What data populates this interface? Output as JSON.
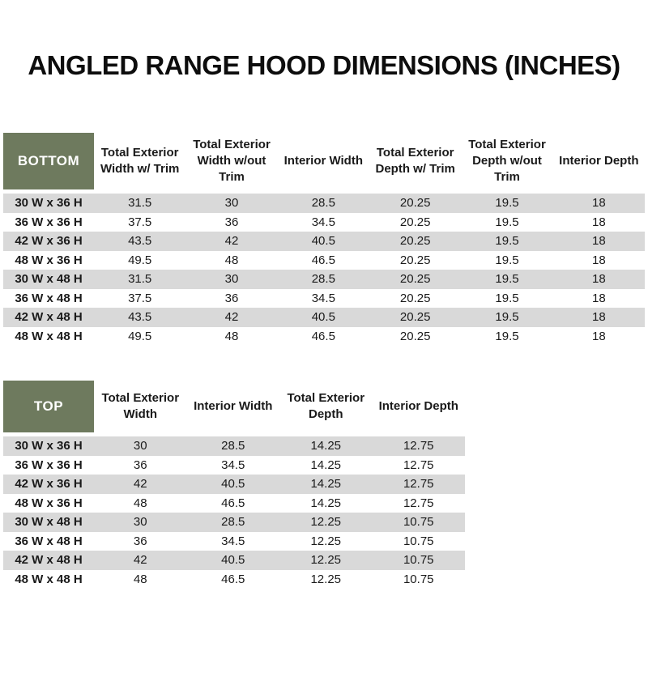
{
  "title": "ANGLED RANGE HOOD DIMENSIONS (INCHES)",
  "colors": {
    "header_green": "#6E7A5E",
    "row_stripe": "#D9D9D9",
    "header_text": "#FFFFFF",
    "body_text": "#1A1A1A"
  },
  "bottom_table": {
    "corner_label": "BOTTOM",
    "columns": [
      "Total Exterior Width w/ Trim",
      "Total Exterior Width w/out Trim",
      "Interior Width",
      "Total Exterior Depth w/ Trim",
      "Total Exterior Depth w/out Trim",
      "Interior Depth"
    ],
    "rows": [
      {
        "label": "30 W x 36 H",
        "values": [
          "31.5",
          "30",
          "28.5",
          "20.25",
          "19.5",
          "18"
        ]
      },
      {
        "label": "36 W x 36 H",
        "values": [
          "37.5",
          "36",
          "34.5",
          "20.25",
          "19.5",
          "18"
        ]
      },
      {
        "label": "42 W x 36 H",
        "values": [
          "43.5",
          "42",
          "40.5",
          "20.25",
          "19.5",
          "18"
        ]
      },
      {
        "label": "48 W x 36 H",
        "values": [
          "49.5",
          "48",
          "46.5",
          "20.25",
          "19.5",
          "18"
        ]
      },
      {
        "label": "30 W x 48 H",
        "values": [
          "31.5",
          "30",
          "28.5",
          "20.25",
          "19.5",
          "18"
        ]
      },
      {
        "label": "36 W x 48 H",
        "values": [
          "37.5",
          "36",
          "34.5",
          "20.25",
          "19.5",
          "18"
        ]
      },
      {
        "label": "42 W x 48 H",
        "values": [
          "43.5",
          "42",
          "40.5",
          "20.25",
          "19.5",
          "18"
        ]
      },
      {
        "label": "48 W x 48 H",
        "values": [
          "49.5",
          "48",
          "46.5",
          "20.25",
          "19.5",
          "18"
        ]
      }
    ]
  },
  "top_table": {
    "corner_label": "TOP",
    "columns": [
      "Total Exterior Width",
      "Interior Width",
      "Total Exterior Depth",
      "Interior Depth"
    ],
    "rows": [
      {
        "label": "30 W x 36 H",
        "values": [
          "30",
          "28.5",
          "14.25",
          "12.75"
        ]
      },
      {
        "label": "36 W x 36 H",
        "values": [
          "36",
          "34.5",
          "14.25",
          "12.75"
        ]
      },
      {
        "label": "42 W x 36 H",
        "values": [
          "42",
          "40.5",
          "14.25",
          "12.75"
        ]
      },
      {
        "label": "48 W x 36 H",
        "values": [
          "48",
          "46.5",
          "14.25",
          "12.75"
        ]
      },
      {
        "label": "30 W x 48 H",
        "values": [
          "30",
          "28.5",
          "12.25",
          "10.75"
        ]
      },
      {
        "label": "36 W x 48 H",
        "values": [
          "36",
          "34.5",
          "12.25",
          "10.75"
        ]
      },
      {
        "label": "42 W x 48 H",
        "values": [
          "42",
          "40.5",
          "12.25",
          "10.75"
        ]
      },
      {
        "label": "48 W x 48 H",
        "values": [
          "48",
          "46.5",
          "12.25",
          "10.75"
        ]
      }
    ]
  }
}
